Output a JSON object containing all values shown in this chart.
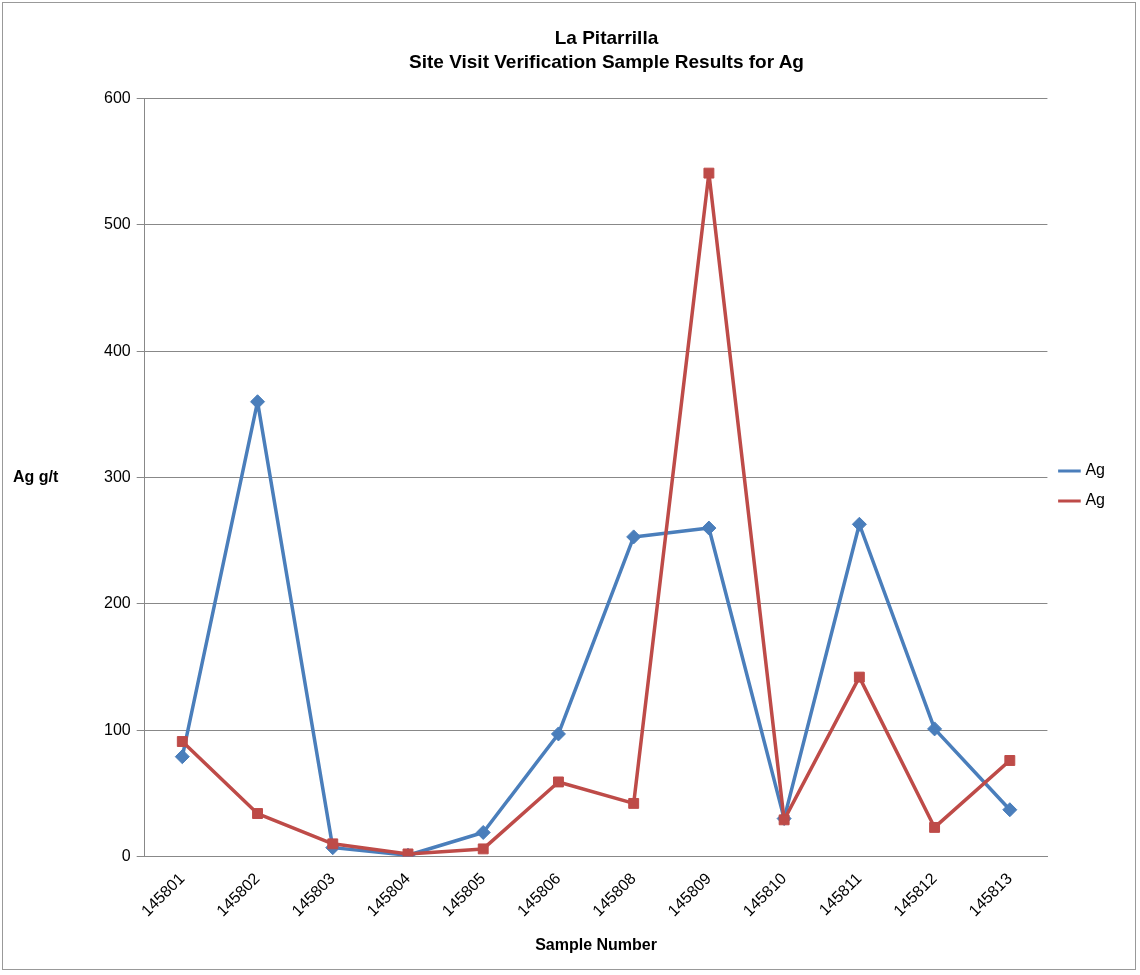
{
  "chart_data": {
    "type": "line",
    "title": "La Pitarrilla",
    "subtitle": "Site Visit Verification Sample Results for Ag",
    "xlabel": "Sample Number",
    "ylabel": "Ag g/t",
    "categories": [
      "145801",
      "145802",
      "145803",
      "145804",
      "145805",
      "145806",
      "145808",
      "145809",
      "145810",
      "145811",
      "145812",
      "145813"
    ],
    "series": [
      {
        "name": "Ag",
        "color": "#4a7ebb",
        "marker": "diamond",
        "values": [
          79,
          360,
          7,
          1,
          19,
          97,
          253,
          260,
          30,
          263,
          101,
          37
        ]
      },
      {
        "name": "Ag",
        "color": "#be4b48",
        "marker": "square",
        "values": [
          91,
          34,
          10,
          2,
          6,
          59,
          42,
          541,
          29,
          142,
          23,
          76
        ]
      }
    ],
    "ylim": [
      0,
      600
    ],
    "yticks": [
      0,
      100,
      200,
      300,
      400,
      500,
      600
    ],
    "grid": "y",
    "legend": "right",
    "line_style": "solid"
  }
}
